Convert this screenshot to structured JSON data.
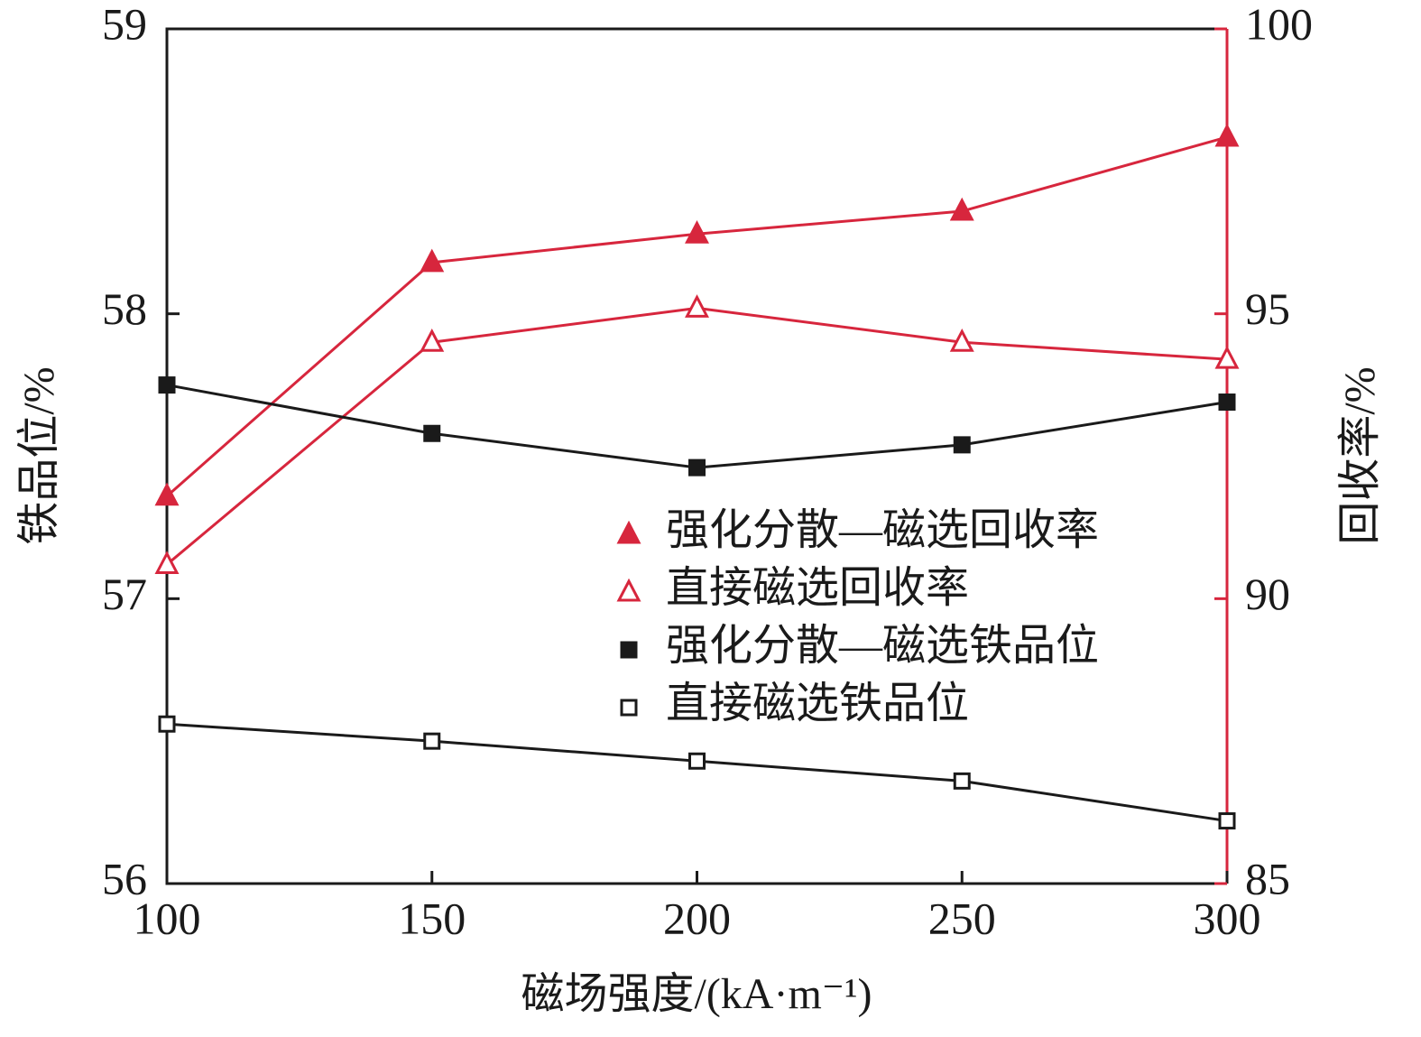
{
  "chart_data": {
    "type": "line",
    "x_label": "磁场强度/(kA·m⁻¹)",
    "y_label": "铁品位/%",
    "y2_label": "回收率/%",
    "x": [
      100,
      150,
      200,
      250,
      300
    ],
    "xlim": [
      100,
      300
    ],
    "xticks": [
      100,
      150,
      200,
      250,
      300
    ],
    "ylim": [
      56,
      59
    ],
    "yticks": [
      56,
      57,
      58,
      59
    ],
    "y2lim": [
      85,
      100
    ],
    "y2ticks": [
      85,
      90,
      95,
      100
    ],
    "y2_color": "#d7263d",
    "series": [
      {
        "name": "强化分散—磁选回收率",
        "color": "#d7263d",
        "marker": "triangle",
        "filled": true,
        "axis": "y2",
        "values": [
          91.8,
          95.9,
          96.4,
          96.8,
          98.1
        ]
      },
      {
        "name": "直接磁选回收率",
        "color": "#d7263d",
        "marker": "triangle",
        "filled": false,
        "axis": "y2",
        "values": [
          90.6,
          94.5,
          95.1,
          94.5,
          94.2
        ]
      },
      {
        "name": "强化分散—磁选铁品位",
        "color": "#1a1a1a",
        "marker": "square",
        "filled": true,
        "axis": "y",
        "values": [
          57.75,
          57.58,
          57.46,
          57.54,
          57.69
        ]
      },
      {
        "name": "直接磁选铁品位",
        "color": "#1a1a1a",
        "marker": "square",
        "filled": false,
        "axis": "y",
        "values": [
          56.56,
          56.5,
          56.43,
          56.36,
          56.22
        ]
      }
    ]
  }
}
